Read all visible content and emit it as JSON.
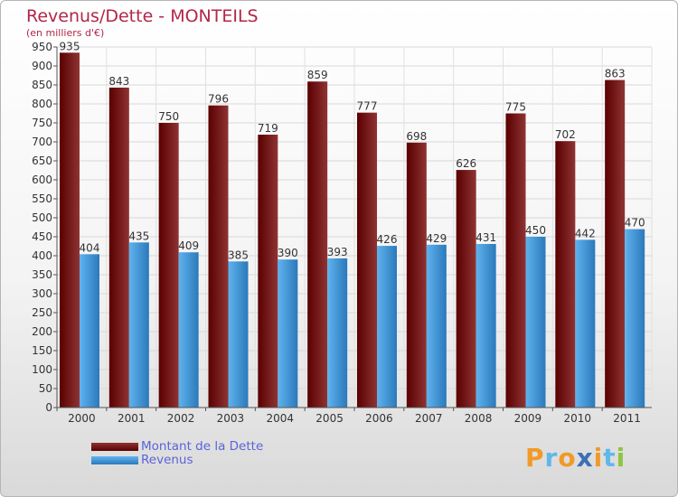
{
  "title": "Revenus/Dette - MONTEILS",
  "subtitle": "(en milliers d'€)",
  "logo": {
    "text": "Proxiti",
    "colors": [
      "#f19a26",
      "#5fb8e8",
      "#f19a26",
      "#3e6fb6",
      "#f19a26",
      "#5fb8e8",
      "#8cc63f"
    ]
  },
  "colors": {
    "debt_dark": "#5a0000",
    "debt_light": "#8f3333",
    "revenue_dark": "#2b79bb",
    "revenue_light": "#5fb3ee",
    "title": "#b2264a",
    "legend_text": "#5b63d9"
  },
  "legend": [
    {
      "label": "Montant de la Dette",
      "series": "debt"
    },
    {
      "label": "Revenus",
      "series": "revenue"
    }
  ],
  "chart_data": {
    "type": "bar",
    "title": "Revenus/Dette - MONTEILS",
    "subtitle": "(en milliers d'€)",
    "xlabel": "",
    "ylabel": "",
    "ylim": [
      0,
      950
    ],
    "ytick_step": 50,
    "grid": true,
    "legend_position": "bottom-left",
    "categories": [
      "2000",
      "2001",
      "2002",
      "2003",
      "2004",
      "2005",
      "2006",
      "2007",
      "2008",
      "2009",
      "2010",
      "2011"
    ],
    "series": [
      {
        "name": "Montant de la Dette",
        "values": [
          935,
          843,
          750,
          796,
          719,
          859,
          777,
          698,
          626,
          775,
          702,
          863
        ]
      },
      {
        "name": "Revenus",
        "values": [
          404,
          435,
          409,
          385,
          390,
          393,
          426,
          429,
          431,
          450,
          442,
          470
        ]
      }
    ]
  }
}
